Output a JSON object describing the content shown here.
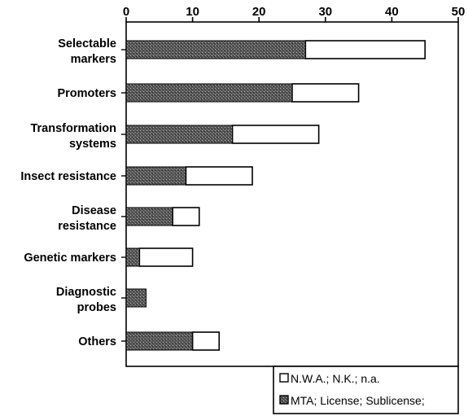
{
  "chart_data": {
    "type": "bar",
    "orientation": "horizontal",
    "stacked": true,
    "categories": [
      [
        "Selectable",
        "markers"
      ],
      [
        "Promoters"
      ],
      [
        "Transformation",
        "systems"
      ],
      [
        "Insect resistance"
      ],
      [
        "Disease",
        "resistance"
      ],
      [
        "Genetic markers"
      ],
      [
        "Diagnostic",
        "probes"
      ],
      [
        "Others"
      ]
    ],
    "series": [
      {
        "name": "MTA; License; Sublicense;",
        "values": [
          27,
          25,
          16,
          9,
          7,
          2,
          3,
          10
        ]
      },
      {
        "name": "N.W.A.; N.K.; n.a.",
        "values": [
          18,
          10,
          13,
          10,
          4,
          8,
          0,
          4
        ]
      }
    ],
    "xlim": [
      0,
      50
    ],
    "xticks": [
      "0",
      "10",
      "20",
      "30",
      "40",
      "50"
    ],
    "x_axis_position": "top",
    "grid": false,
    "legend_position": "bottom-right",
    "colors": {
      "shaded": "#4a4a4a",
      "open": "#ffffff",
      "stroke": "#000000"
    }
  }
}
